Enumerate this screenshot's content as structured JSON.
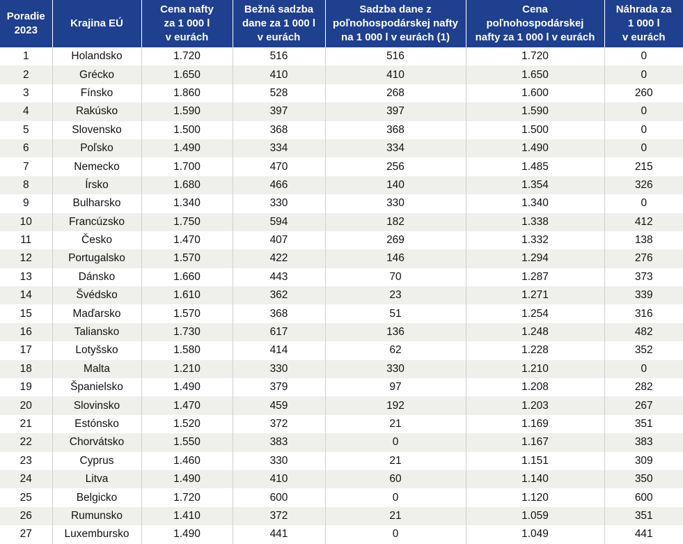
{
  "colors": {
    "header_bg": "#1f3f8f",
    "header_text": "#ffffff",
    "row_alt": "#efefeb"
  },
  "chart_data": {
    "type": "table",
    "columns": [
      {
        "key": "rank",
        "lines": [
          "Poradie",
          "2023"
        ]
      },
      {
        "key": "country",
        "lines": [
          "Krajina EÚ"
        ]
      },
      {
        "key": "diesel_price",
        "lines": [
          "Cena nafty",
          "za 1 000 l",
          "v eurách"
        ]
      },
      {
        "key": "standard_tax",
        "lines": [
          "Bežná sadzba",
          "dane za 1 000 l",
          "v eurách"
        ]
      },
      {
        "key": "agri_tax",
        "lines": [
          "Sadzba dane z",
          "poľnohospodárskej nafty",
          "na 1 000 l v eurách (1)"
        ]
      },
      {
        "key": "agri_price",
        "lines": [
          "Cena",
          "poľnohospodárskej",
          "nafty za 1 000 l v eurách"
        ]
      },
      {
        "key": "refund",
        "lines": [
          "Náhrada za",
          "1 000 l",
          "v eurách"
        ]
      }
    ],
    "rows": [
      [
        "1",
        "Holandsko",
        "1.720",
        "516",
        "516",
        "1.720",
        "0"
      ],
      [
        "2",
        "Grécko",
        "1.650",
        "410",
        "410",
        "1.650",
        "0"
      ],
      [
        "3",
        "Fínsko",
        "1.860",
        "528",
        "268",
        "1.600",
        "260"
      ],
      [
        "4",
        "Rakúsko",
        "1.590",
        "397",
        "397",
        "1.590",
        "0"
      ],
      [
        "5",
        "Slovensko",
        "1.500",
        "368",
        "368",
        "1.500",
        "0"
      ],
      [
        "6",
        "Poľsko",
        "1.490",
        "334",
        "334",
        "1.490",
        "0"
      ],
      [
        "7",
        "Nemecko",
        "1.700",
        "470",
        "256",
        "1.485",
        "215"
      ],
      [
        "8",
        "Írsko",
        "1.680",
        "466",
        "140",
        "1.354",
        "326"
      ],
      [
        "9",
        "Bulharsko",
        "1.340",
        "330",
        "330",
        "1.340",
        "0"
      ],
      [
        "10",
        "Francúzsko",
        "1.750",
        "594",
        "182",
        "1.338",
        "412"
      ],
      [
        "11",
        "Česko",
        "1.470",
        "407",
        "269",
        "1.332",
        "138"
      ],
      [
        "12",
        "Portugalsko",
        "1.570",
        "422",
        "146",
        "1.294",
        "276"
      ],
      [
        "13",
        "Dánsko",
        "1.660",
        "443",
        "70",
        "1.287",
        "373"
      ],
      [
        "14",
        "Švédsko",
        "1.610",
        "362",
        "23",
        "1.271",
        "339"
      ],
      [
        "15",
        "Maďarsko",
        "1.570",
        "368",
        "51",
        "1.254",
        "316"
      ],
      [
        "16",
        "Taliansko",
        "1.730",
        "617",
        "136",
        "1.248",
        "482"
      ],
      [
        "17",
        "Lotyšsko",
        "1.580",
        "414",
        "62",
        "1.228",
        "352"
      ],
      [
        "18",
        "Malta",
        "1.210",
        "330",
        "330",
        "1.210",
        "0"
      ],
      [
        "19",
        "Španielsko",
        "1.490",
        "379",
        "97",
        "1.208",
        "282"
      ],
      [
        "20",
        "Slovinsko",
        "1.470",
        "459",
        "192",
        "1.203",
        "267"
      ],
      [
        "21",
        "Estónsko",
        "1.520",
        "372",
        "21",
        "1.169",
        "351"
      ],
      [
        "22",
        "Chorvátsko",
        "1.550",
        "383",
        "0",
        "1.167",
        "383"
      ],
      [
        "23",
        "Cyprus",
        "1.460",
        "330",
        "21",
        "1.151",
        "309"
      ],
      [
        "24",
        "Litva",
        "1.490",
        "410",
        "60",
        "1.140",
        "350"
      ],
      [
        "25",
        "Belgicko",
        "1.720",
        "600",
        "0",
        "1.120",
        "600"
      ],
      [
        "26",
        "Rumunsko",
        "1.410",
        "372",
        "21",
        "1.059",
        "351"
      ],
      [
        "27",
        "Luxembursko",
        "1.490",
        "441",
        "0",
        "1.049",
        "441"
      ]
    ]
  }
}
